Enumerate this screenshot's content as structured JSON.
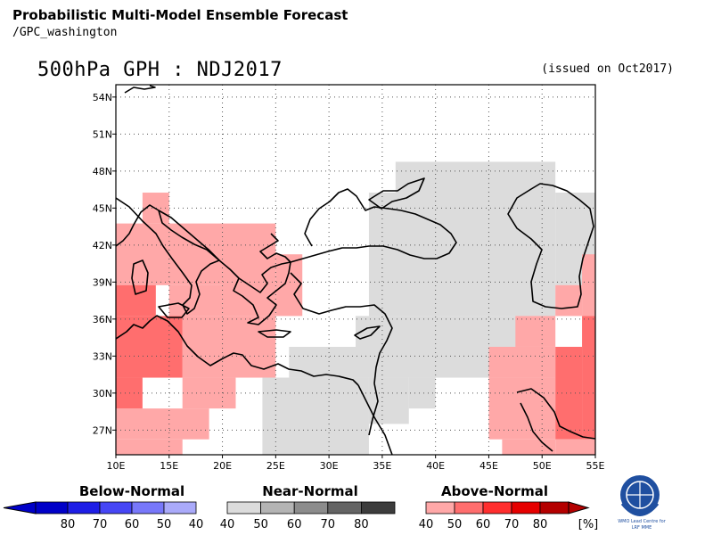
{
  "header": {
    "title": "Probabilistic Multi-Model Ensemble Forecast",
    "subtitle": "/GPC_washington",
    "product": "500hPa GPH : NDJ2017",
    "issued": "(issued on Oct2017)"
  },
  "map": {
    "lon_range": [
      10,
      55
    ],
    "lat_range": [
      25,
      55
    ],
    "lon_labels": [
      "10E",
      "15E",
      "20E",
      "25E",
      "30E",
      "35E",
      "40E",
      "45E",
      "50E",
      "55E"
    ],
    "lat_labels": [
      "27N",
      "30N",
      "33N",
      "36N",
      "39N",
      "42N",
      "45N",
      "48N",
      "51N",
      "54N"
    ],
    "lon_ticks": [
      10,
      15,
      20,
      25,
      30,
      35,
      40,
      45,
      50,
      55
    ],
    "lat_ticks": [
      27,
      30,
      33,
      36,
      39,
      42,
      45,
      48,
      51,
      54
    ],
    "categories": {
      "near_normal_40": "#dcdcdc",
      "above_normal_40": "#ffa8a8",
      "above_normal_50": "#ff6e6e"
    },
    "cells": [
      {
        "lon": [
          12.5,
          15.0
        ],
        "lat": [
          43.75,
          46.25
        ],
        "cat": "above_normal_40"
      },
      {
        "lon": [
          10.0,
          20.0
        ],
        "lat": [
          38.75,
          43.75
        ],
        "cat": "above_normal_40"
      },
      {
        "lon": [
          20.0,
          25.0
        ],
        "lat": [
          36.25,
          43.75
        ],
        "cat": "above_normal_40"
      },
      {
        "lon": [
          25.0,
          27.5
        ],
        "lat": [
          36.25,
          41.25
        ],
        "cat": "above_normal_40"
      },
      {
        "lon": [
          15.0,
          20.0
        ],
        "lat": [
          36.25,
          38.75
        ],
        "cat": "above_normal_40"
      },
      {
        "lon": [
          16.25,
          25.0
        ],
        "lat": [
          31.25,
          36.25
        ],
        "cat": "above_normal_40"
      },
      {
        "lon": [
          16.25,
          21.25
        ],
        "lat": [
          28.75,
          31.25
        ],
        "cat": "above_normal_40"
      },
      {
        "lon": [
          10.0,
          18.75
        ],
        "lat": [
          26.25,
          28.75
        ],
        "cat": "above_normal_40"
      },
      {
        "lon": [
          10.0,
          16.25
        ],
        "lat": [
          25.0,
          26.25
        ],
        "cat": "above_normal_40"
      },
      {
        "lon": [
          10.0,
          13.75
        ],
        "lat": [
          36.25,
          38.75
        ],
        "cat": "above_normal_50"
      },
      {
        "lon": [
          10.0,
          16.25
        ],
        "lat": [
          31.25,
          36.25
        ],
        "cat": "above_normal_50"
      },
      {
        "lon": [
          10.0,
          12.5
        ],
        "lat": [
          28.75,
          31.25
        ],
        "cat": "above_normal_50"
      },
      {
        "lon": [
          36.25,
          51.25
        ],
        "lat": [
          46.25,
          48.75
        ],
        "cat": "near_normal_40"
      },
      {
        "lon": [
          33.75,
          51.25
        ],
        "lat": [
          36.25,
          46.25
        ],
        "cat": "near_normal_40"
      },
      {
        "lon": [
          51.25,
          55.0
        ],
        "lat": [
          38.75,
          46.25
        ],
        "cat": "near_normal_40"
      },
      {
        "lon": [
          32.5,
          48.75
        ],
        "lat": [
          33.75,
          36.25
        ],
        "cat": "near_normal_40"
      },
      {
        "lon": [
          26.25,
          45.0
        ],
        "lat": [
          31.25,
          33.75
        ],
        "cat": "near_normal_40"
      },
      {
        "lon": [
          23.75,
          33.75
        ],
        "lat": [
          25.0,
          31.25
        ],
        "cat": "near_normal_40"
      },
      {
        "lon": [
          33.75,
          37.5
        ],
        "lat": [
          27.5,
          31.25
        ],
        "cat": "near_normal_40"
      },
      {
        "lon": [
          37.5,
          40.0
        ],
        "lat": [
          28.75,
          31.25
        ],
        "cat": "near_normal_40"
      },
      {
        "lon": [
          47.5,
          51.25
        ],
        "lat": [
          33.75,
          36.25
        ],
        "cat": "above_normal_40"
      },
      {
        "lon": [
          51.25,
          53.75
        ],
        "lat": [
          36.25,
          38.75
        ],
        "cat": "above_normal_40"
      },
      {
        "lon": [
          53.75,
          55.0
        ],
        "lat": [
          36.25,
          41.25
        ],
        "cat": "above_normal_40"
      },
      {
        "lon": [
          45.0,
          51.25
        ],
        "lat": [
          31.25,
          33.75
        ],
        "cat": "above_normal_40"
      },
      {
        "lon": [
          45.0,
          51.25
        ],
        "lat": [
          26.25,
          31.25
        ],
        "cat": "above_normal_40"
      },
      {
        "lon": [
          46.25,
          51.25
        ],
        "lat": [
          25.0,
          26.25
        ],
        "cat": "above_normal_40"
      },
      {
        "lon": [
          51.25,
          53.75
        ],
        "lat": [
          26.25,
          33.75
        ],
        "cat": "above_normal_50"
      },
      {
        "lon": [
          53.75,
          55.0
        ],
        "lat": [
          26.25,
          36.25
        ],
        "cat": "above_normal_50"
      },
      {
        "lon": [
          51.25,
          55.0
        ],
        "lat": [
          25.0,
          26.25
        ],
        "cat": "above_normal_40"
      }
    ]
  },
  "legend": {
    "below": {
      "label": "Below-Normal",
      "ticks": [
        "80",
        "70",
        "60",
        "50",
        "40"
      ],
      "colors": [
        "#0000c8",
        "#1e1ee6",
        "#4646f5",
        "#7878fa",
        "#aaaafa"
      ]
    },
    "near": {
      "label": "Near-Normal",
      "ticks": [
        "40",
        "50",
        "60",
        "70",
        "80"
      ],
      "colors": [
        "#dcdcdc",
        "#b4b4b4",
        "#8c8c8c",
        "#646464",
        "#3c3c3c"
      ]
    },
    "above": {
      "label": "Above-Normal",
      "ticks": [
        "40",
        "50",
        "60",
        "70",
        "80"
      ],
      "colors": [
        "#ffa8a8",
        "#ff6e6e",
        "#ff2e2e",
        "#e60000",
        "#b40000"
      ]
    },
    "unit": "[%]"
  },
  "logo": {
    "line1": "WMO Lead Centre for",
    "line2": "LRF MME"
  }
}
